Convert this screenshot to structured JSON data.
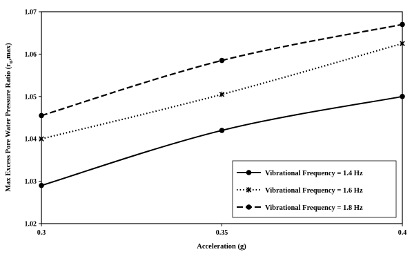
{
  "chart_data": {
    "type": "line",
    "title": "",
    "xlabel": "Acceleration (g)",
    "ylabel": {
      "before": "Max Excess Pore Water Pressure Ratio (r",
      "sub": "u",
      "after": ",max)"
    },
    "x": [
      0.3,
      0.35,
      0.4
    ],
    "x_tick_labels": [
      "0.3",
      "0.35",
      "0.4"
    ],
    "xlim": [
      0.3,
      0.4
    ],
    "ylim": [
      1.02,
      1.07
    ],
    "y_ticks": [
      1.02,
      1.03,
      1.04,
      1.05,
      1.06,
      1.07
    ],
    "y_tick_labels": [
      "1.02",
      "1.03",
      "1.04",
      "1.05",
      "1.06",
      "1.07"
    ],
    "grid": false,
    "legend_position": "bottom-right",
    "series": [
      {
        "name": "Vibrational Frequency = 1.4 Hz",
        "values": [
          1.029,
          1.042,
          1.05
        ],
        "line_style": "solid",
        "marker": "circle",
        "color": "#000000"
      },
      {
        "name": "Vibrational Frequency = 1.6 Hz",
        "values": [
          1.04,
          1.0505,
          1.0625
        ],
        "line_style": "dotted",
        "marker": "star",
        "color": "#000000"
      },
      {
        "name": "Vibrational Frequency = 1.8 Hz",
        "values": [
          1.0455,
          1.0585,
          1.067
        ],
        "line_style": "dashed",
        "marker": "circle",
        "color": "#000000"
      }
    ]
  }
}
